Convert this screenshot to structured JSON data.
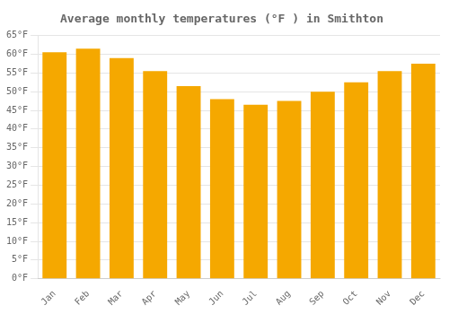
{
  "chart_data": {
    "type": "bar",
    "title": "Average monthly temperatures (°F ) in Smithton",
    "categories": [
      "Jan",
      "Feb",
      "Mar",
      "Apr",
      "May",
      "Jun",
      "Jul",
      "Aug",
      "Sep",
      "Oct",
      "Nov",
      "Dec"
    ],
    "values": [
      60.5,
      61.5,
      59.0,
      55.5,
      51.5,
      48.0,
      46.5,
      47.5,
      50.0,
      52.5,
      55.5,
      57.5
    ],
    "color": "#F5A800",
    "ylim": [
      0,
      65
    ],
    "yticks": [
      {
        "value": 0,
        "label": "0°F"
      },
      {
        "value": 5,
        "label": "5°F"
      },
      {
        "value": 10,
        "label": "10°F"
      },
      {
        "value": 15,
        "label": "15°F"
      },
      {
        "value": 20,
        "label": "20°F"
      },
      {
        "value": 25,
        "label": "25°F"
      },
      {
        "value": 30,
        "label": "30°F"
      },
      {
        "value": 35,
        "label": "35°F"
      },
      {
        "value": 40,
        "label": "40°F"
      },
      {
        "value": 45,
        "label": "45°F"
      },
      {
        "value": 50,
        "label": "50°F"
      },
      {
        "value": 55,
        "label": "55°F"
      },
      {
        "value": 60,
        "label": "60°F"
      },
      {
        "value": 65,
        "label": "65°F"
      }
    ],
    "grid": true
  }
}
